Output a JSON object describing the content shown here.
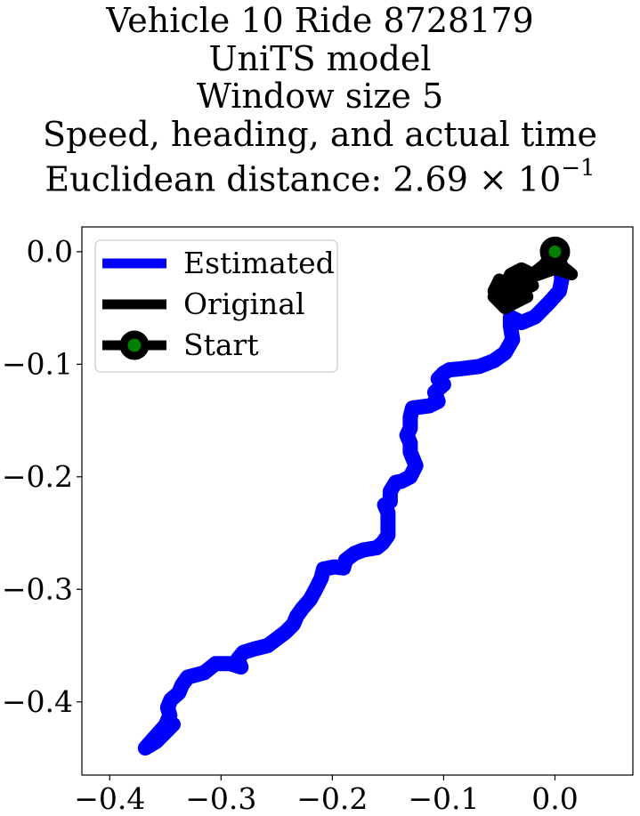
{
  "chart_data": {
    "type": "line",
    "title_lines": [
      "Vehicle 10 Ride 8728179",
      "UniTS model",
      "Window size 5",
      "Speed, heading, and actual time"
    ],
    "title_distance_label": "Euclidean distance: ",
    "title_distance_mantissa": "2.69",
    "title_distance_times": " × 10",
    "title_distance_exponent": "−1",
    "xlim": [
      -0.425,
      0.07
    ],
    "ylim": [
      -0.465,
      0.022
    ],
    "xticks": [
      -0.4,
      -0.3,
      -0.2,
      -0.1,
      0.0
    ],
    "xtick_labels": [
      "−0.4",
      "−0.3",
      "−0.2",
      "−0.1",
      "0.0"
    ],
    "yticks": [
      0.0,
      -0.1,
      -0.2,
      -0.3,
      -0.4
    ],
    "ytick_labels": [
      "0.0",
      "−0.1",
      "−0.2",
      "−0.3",
      "−0.4"
    ],
    "grid": false,
    "legend_position": "upper-left",
    "series": [
      {
        "name": "Estimated",
        "color": "#0000ff",
        "points": [
          [
            0.0,
            0.0
          ],
          [
            0.005,
            -0.012
          ],
          [
            0.006,
            -0.025
          ],
          [
            0.004,
            -0.035
          ],
          [
            -0.005,
            -0.045
          ],
          [
            -0.018,
            -0.058
          ],
          [
            -0.03,
            -0.063
          ],
          [
            -0.04,
            -0.058
          ],
          [
            -0.04,
            -0.066
          ],
          [
            -0.038,
            -0.078
          ],
          [
            -0.045,
            -0.09
          ],
          [
            -0.055,
            -0.097
          ],
          [
            -0.068,
            -0.102
          ],
          [
            -0.085,
            -0.104
          ],
          [
            -0.095,
            -0.105
          ],
          [
            -0.1,
            -0.108
          ],
          [
            -0.105,
            -0.113
          ],
          [
            -0.1,
            -0.118
          ],
          [
            -0.108,
            -0.125
          ],
          [
            -0.105,
            -0.133
          ],
          [
            -0.113,
            -0.137
          ],
          [
            -0.128,
            -0.139
          ],
          [
            -0.13,
            -0.147
          ],
          [
            -0.13,
            -0.157
          ],
          [
            -0.133,
            -0.163
          ],
          [
            -0.13,
            -0.17
          ],
          [
            -0.13,
            -0.178
          ],
          [
            -0.125,
            -0.19
          ],
          [
            -0.13,
            -0.2
          ],
          [
            -0.138,
            -0.204
          ],
          [
            -0.143,
            -0.205
          ],
          [
            -0.148,
            -0.213
          ],
          [
            -0.148,
            -0.222
          ],
          [
            -0.153,
            -0.225
          ],
          [
            -0.15,
            -0.232
          ],
          [
            -0.15,
            -0.241
          ],
          [
            -0.15,
            -0.252
          ],
          [
            -0.155,
            -0.259
          ],
          [
            -0.16,
            -0.263
          ],
          [
            -0.172,
            -0.265
          ],
          [
            -0.18,
            -0.268
          ],
          [
            -0.188,
            -0.274
          ],
          [
            -0.19,
            -0.281
          ],
          [
            -0.198,
            -0.28
          ],
          [
            -0.208,
            -0.282
          ],
          [
            -0.21,
            -0.29
          ],
          [
            -0.215,
            -0.3
          ],
          [
            -0.22,
            -0.309
          ],
          [
            -0.227,
            -0.317
          ],
          [
            -0.232,
            -0.324
          ],
          [
            -0.235,
            -0.331
          ],
          [
            -0.242,
            -0.338
          ],
          [
            -0.25,
            -0.344
          ],
          [
            -0.258,
            -0.35
          ],
          [
            -0.27,
            -0.353
          ],
          [
            -0.28,
            -0.356
          ],
          [
            -0.285,
            -0.362
          ],
          [
            -0.282,
            -0.369
          ],
          [
            -0.292,
            -0.366
          ],
          [
            -0.305,
            -0.366
          ],
          [
            -0.315,
            -0.374
          ],
          [
            -0.33,
            -0.378
          ],
          [
            -0.335,
            -0.385
          ],
          [
            -0.338,
            -0.392
          ],
          [
            -0.345,
            -0.398
          ],
          [
            -0.348,
            -0.405
          ],
          [
            -0.346,
            -0.412
          ],
          [
            -0.35,
            -0.421
          ],
          [
            -0.36,
            -0.432
          ],
          [
            -0.368,
            -0.441
          ],
          [
            -0.358,
            -0.435
          ],
          [
            -0.343,
            -0.42
          ]
        ]
      },
      {
        "name": "Original",
        "color": "#000000",
        "points": [
          [
            0.0,
            0.0
          ],
          [
            -0.01,
            -0.012
          ],
          [
            -0.02,
            -0.02
          ],
          [
            -0.03,
            -0.015
          ],
          [
            -0.04,
            -0.02
          ],
          [
            -0.045,
            -0.03
          ],
          [
            -0.05,
            -0.025
          ],
          [
            -0.055,
            -0.035
          ],
          [
            -0.04,
            -0.045
          ],
          [
            -0.03,
            -0.035
          ],
          [
            -0.02,
            -0.03
          ],
          [
            -0.03,
            -0.025
          ],
          [
            -0.045,
            -0.035
          ],
          [
            -0.055,
            -0.04
          ],
          [
            -0.045,
            -0.05
          ],
          [
            -0.035,
            -0.045
          ],
          [
            -0.025,
            -0.04
          ],
          [
            -0.035,
            -0.03
          ],
          [
            -0.02,
            -0.022
          ],
          [
            0.0,
            -0.015
          ],
          [
            0.015,
            -0.02
          ],
          [
            0.0,
            -0.008
          ],
          [
            0.0,
            0.0
          ]
        ]
      }
    ],
    "start_point": {
      "name": "Start",
      "x": 0.0,
      "y": 0.0,
      "edge_color": "#000000",
      "face_color": "#008000"
    }
  }
}
